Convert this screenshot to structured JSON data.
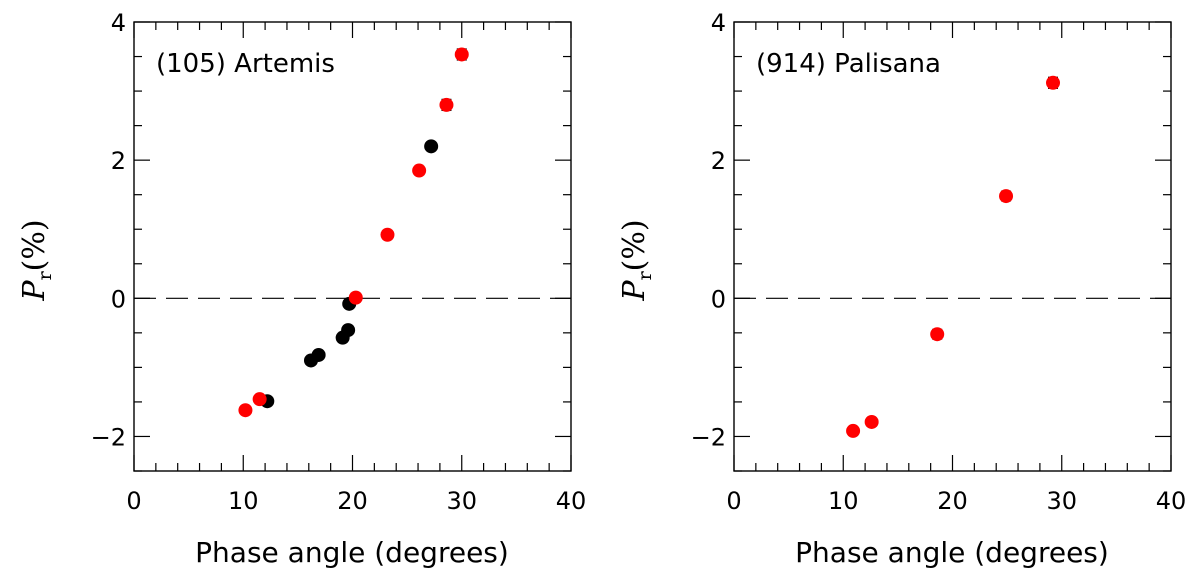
{
  "chart_data": [
    {
      "type": "scatter",
      "title": "(105) Artemis",
      "xlabel": "Phase angle (degrees)",
      "ylabel": {
        "symbol": "P",
        "subscript": "r",
        "unit": "(%)"
      },
      "xlim": [
        0,
        40
      ],
      "ylim": [
        -2.5,
        4
      ],
      "xticks": [
        "0",
        "10",
        "20",
        "30",
        "40"
      ],
      "yticks": [
        "−2",
        "0",
        "2",
        "4"
      ],
      "reference_line": {
        "y": 0,
        "style": "dashed"
      },
      "series": [
        {
          "name": "black",
          "color": "#000000",
          "points": [
            {
              "x": 12.2,
              "y": -1.49
            },
            {
              "x": 16.2,
              "y": -0.9
            },
            {
              "x": 16.9,
              "y": -0.82
            },
            {
              "x": 19.1,
              "y": -0.57
            },
            {
              "x": 19.6,
              "y": -0.46
            },
            {
              "x": 19.7,
              "y": -0.08
            },
            {
              "x": 27.2,
              "y": 2.2
            }
          ]
        },
        {
          "name": "red",
          "color": "#ff0000",
          "points": [
            {
              "x": 10.2,
              "y": -1.62,
              "err": 0.05
            },
            {
              "x": 11.5,
              "y": -1.46,
              "err": 0.05
            },
            {
              "x": 20.3,
              "y": 0.01,
              "err": 0.06
            },
            {
              "x": 23.2,
              "y": 0.92,
              "err": 0.06
            },
            {
              "x": 26.1,
              "y": 1.85,
              "err": 0.06
            },
            {
              "x": 28.6,
              "y": 2.8,
              "err": 0.08
            },
            {
              "x": 30.0,
              "y": 3.53,
              "err": 0.08
            }
          ]
        }
      ]
    },
    {
      "type": "scatter",
      "title": "(914) Palisana",
      "xlabel": "Phase angle (degrees)",
      "ylabel": {
        "symbol": "P",
        "subscript": "r",
        "unit": "(%)"
      },
      "xlim": [
        0,
        40
      ],
      "ylim": [
        -2.5,
        4
      ],
      "xticks": [
        "0",
        "10",
        "20",
        "30",
        "40"
      ],
      "yticks": [
        "−2",
        "0",
        "2",
        "4"
      ],
      "reference_line": {
        "y": 0,
        "style": "dashed"
      },
      "series": [
        {
          "name": "red",
          "color": "#ff0000",
          "points": [
            {
              "x": 10.9,
              "y": -1.92,
              "err": 0.06
            },
            {
              "x": 12.6,
              "y": -1.79,
              "err": 0.06
            },
            {
              "x": 18.6,
              "y": -0.52,
              "err": 0.07
            },
            {
              "x": 24.9,
              "y": 1.48,
              "err": 0.07
            },
            {
              "x": 29.2,
              "y": 3.12,
              "err": 0.08
            }
          ]
        }
      ]
    }
  ]
}
